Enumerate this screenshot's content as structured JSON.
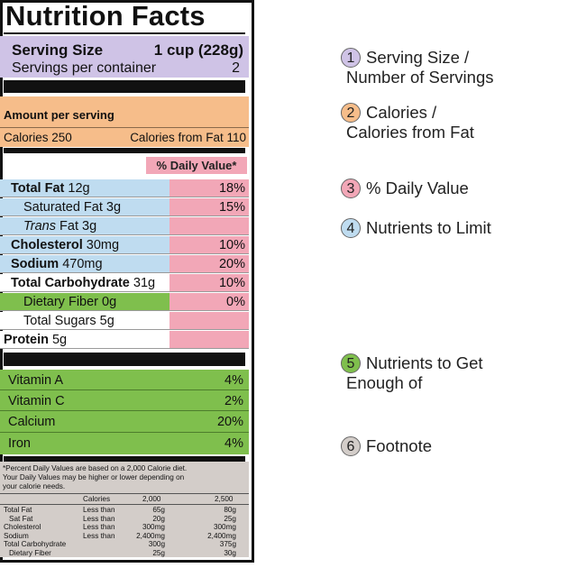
{
  "title": "Nutrition Facts",
  "serving": {
    "size_label": "Serving Size",
    "size_value": "1 cup (228g)",
    "per_container_label": "Servings per container",
    "per_container_value": "2"
  },
  "amount": {
    "header": "Amount per serving",
    "calories": "Calories 250",
    "calories_fat": "Calories from Fat 110"
  },
  "dv_header": "% Daily Value*",
  "nutrients": {
    "total_fat": {
      "name": "Total Fat",
      "amount": "12g",
      "dv": "18%"
    },
    "sat_fat": {
      "name": "Saturated Fat 3g",
      "dv": "15%"
    },
    "trans_fat": {
      "italic": "Trans",
      "rest": "Fat 3g"
    },
    "cholesterol": {
      "name": "Cholesterol",
      "amount": "30mg",
      "dv": "10%"
    },
    "sodium": {
      "name": "Sodium",
      "amount": "470mg",
      "dv": "20%"
    },
    "carb": {
      "name": "Total Carbohydrate",
      "amount": "31g",
      "dv": "10%"
    },
    "fiber": {
      "name": "Dietary Fiber 0g",
      "dv": "0%"
    },
    "sugars": {
      "name": "Total Sugars 5g"
    },
    "protein": {
      "name": "Protein",
      "amount": "5g"
    }
  },
  "vitamins": [
    {
      "name": "Vitamin A",
      "dv": "4%"
    },
    {
      "name": "Vitamin C",
      "dv": "2%"
    },
    {
      "name": "Calcium",
      "dv": "20%"
    },
    {
      "name": "Iron",
      "dv": "4%"
    }
  ],
  "footnote": {
    "lines": [
      "*Percent Daily Values are based on a 2,000 Calorie diet.",
      "Your Daily Values may be higher or lower depending on",
      "your calorie needs."
    ],
    "header": [
      "Calories",
      "2,000",
      "2,500"
    ],
    "rows": [
      [
        "Total Fat",
        "Less than",
        "65g",
        "80g"
      ],
      [
        "Sat Fat",
        "Less than",
        "20g",
        "25g"
      ],
      [
        "Cholesterol",
        "Less than",
        "300mg",
        "300mg"
      ],
      [
        "Sodium",
        "Less than",
        "2,400mg",
        "2,400mg"
      ],
      [
        "Total Carbohydrate",
        "",
        "300g",
        "375g"
      ],
      [
        "Dietary Fiber",
        "",
        "25g",
        "30g"
      ]
    ]
  },
  "annotations": [
    {
      "num": "1",
      "line1": "Serving Size /",
      "line2": "Number of Servings",
      "color": "#cfc3e6"
    },
    {
      "num": "2",
      "line1": "Calories /",
      "line2": "Calories from Fat",
      "color": "#f6bd8a"
    },
    {
      "num": "3",
      "line1": "% Daily Value",
      "line2": "",
      "color": "#f2a7b7"
    },
    {
      "num": "4",
      "line1": "Nutrients to Limit",
      "line2": "",
      "color": "#bfdcf0"
    },
    {
      "num": "5",
      "line1": "Nutrients to Get",
      "line2": "Enough of",
      "color": "#7fbf4d"
    },
    {
      "num": "6",
      "line1": "Footnote",
      "line2": "",
      "color": "#d3cdc9"
    }
  ],
  "colors": {
    "serving": "#cfc3e6",
    "calories": "#f6bd8a",
    "daily_value": "#f2a7b7",
    "limit": "#bfdcf0",
    "enough": "#7fbf4d",
    "footnote": "#d3cdc9"
  }
}
